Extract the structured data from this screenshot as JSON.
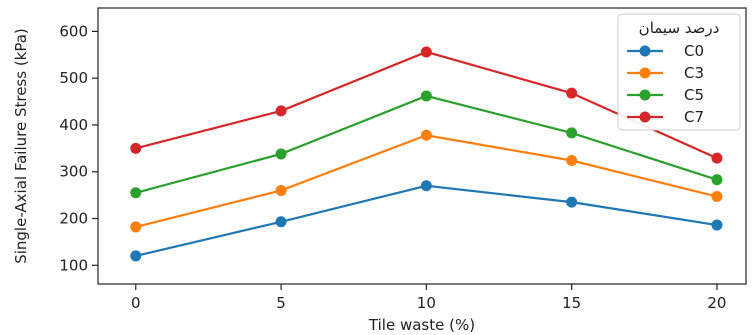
{
  "chart_data": {
    "type": "line",
    "xlabel": "Tile waste (%)",
    "ylabel": "Single-Axial Failure Stress (kPa)",
    "x": [
      0,
      5,
      10,
      15,
      20
    ],
    "x_ticks": [
      "0",
      "5",
      "10",
      "15",
      "20"
    ],
    "y_ticks": [
      "100",
      "200",
      "300",
      "400",
      "500",
      "600"
    ],
    "xlim": [
      -1.3,
      21
    ],
    "ylim": [
      60,
      650
    ],
    "grid": false,
    "legend": {
      "title": "درصد سیمان",
      "placement": "top-right"
    },
    "series": [
      {
        "name": "C0",
        "color": "#1f77b4",
        "values": [
          120,
          193,
          270,
          235,
          186
        ]
      },
      {
        "name": "C3",
        "color": "#ff7f0e",
        "values": [
          182,
          260,
          378,
          324,
          247
        ]
      },
      {
        "name": "C5",
        "color": "#2ca02c",
        "values": [
          255,
          338,
          462,
          383,
          283
        ]
      },
      {
        "name": "C7",
        "color": "#d62728",
        "values": [
          350,
          430,
          556,
          468,
          329
        ]
      }
    ]
  }
}
